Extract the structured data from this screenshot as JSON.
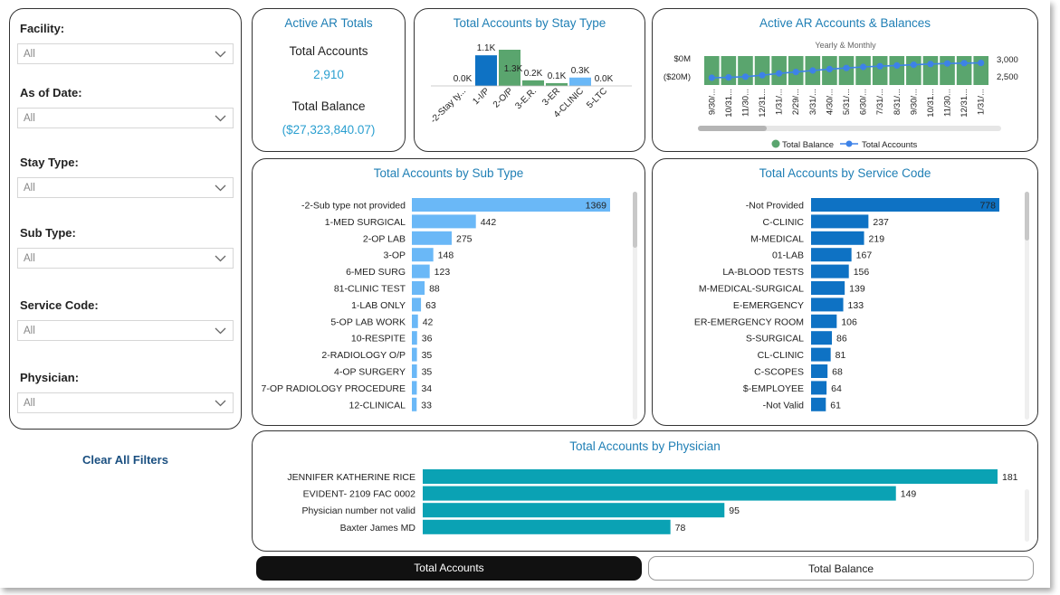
{
  "filters": {
    "items": [
      {
        "label": "Facility:",
        "value": "All"
      },
      {
        "label": "As of Date:",
        "value": "All"
      },
      {
        "label": "Stay Type:",
        "value": "All"
      },
      {
        "label": "Sub Type:",
        "value": "All"
      },
      {
        "label": "Service Code:",
        "value": "All"
      },
      {
        "label": "Physician:",
        "value": "All"
      }
    ],
    "clear_label": "Clear All Filters"
  },
  "kpi": {
    "title": "Active AR Totals",
    "accounts_label": "Total Accounts",
    "accounts_value": "2,910",
    "balance_label": "Total Balance",
    "balance_value": "($27,323,840.07)"
  },
  "toggles": {
    "accounts_label": "Total Accounts",
    "balance_label": "Total Balance"
  },
  "colors": {
    "blue": "#0e72c4",
    "green": "#5aa56e",
    "light_blue": "#6ab8f7",
    "teal": "#0aa2b4",
    "line_blue": "#3d82e8",
    "title_blue": "#1f7fb5"
  },
  "chart_data": [
    {
      "id": "stay",
      "type": "bar",
      "title": "Total Accounts by Stay Type",
      "categories": [
        "-2-Stay ty...",
        "1-I/P",
        "2-O/P",
        "3-E.R.",
        "3-ER",
        "4-CLINIC",
        "5-LTC"
      ],
      "values": [
        0,
        1.1,
        1.3,
        0.2,
        0.1,
        0.3,
        0
      ],
      "labels": [
        "0.0K",
        "1.1K",
        "1.3K",
        "0.2K",
        "0.1K",
        "0.3K",
        "0.0K"
      ],
      "bar_colors": [
        "#0e72c4",
        "#0e72c4",
        "#5aa56e",
        "#5aa56e",
        "#5aa56e",
        "#6ab8f7",
        "#6ab8f7"
      ],
      "unit": "K"
    },
    {
      "id": "trend",
      "type": "bar+line",
      "title": "Active AR Accounts & Balances",
      "subtitle": "Yearly & Monthly",
      "categories": [
        "9/30/...",
        "10/31...",
        "11/30...",
        "12/31...",
        "1/31/...",
        "2/29/...",
        "3/31/...",
        "4/30/...",
        "5/31/...",
        "6/30/...",
        "7/31/...",
        "8/31/...",
        "9/30/...",
        "10/31...",
        "11/30...",
        "12/31...",
        "1/31/..."
      ],
      "left_axis_ticks": [
        "$0M",
        "($20M)"
      ],
      "right_axis_ticks": [
        "3,000",
        "2,500"
      ],
      "right_ylim": [
        2300,
        3100
      ],
      "line_values": [
        2500,
        2510,
        2530,
        2570,
        2620,
        2660,
        2700,
        2740,
        2770,
        2800,
        2820,
        2840,
        2860,
        2880,
        2895,
        2905,
        2910
      ],
      "legend": [
        "Total Balance",
        "Total Accounts"
      ]
    },
    {
      "id": "subtype",
      "type": "bar",
      "title": "Total Accounts by Sub Type",
      "categories": [
        "-2-Sub type not provided",
        "1-MED SURGICAL",
        "2-OP LAB",
        "3-OP",
        "6-MED SURG",
        "81-CLINIC TEST",
        "1-LAB ONLY",
        "5-OP LAB WORK",
        "10-RESPITE",
        "2-RADIOLOGY O/P",
        "4-OP SURGERY",
        "7-OP RADIOLOGY PROCEDURE",
        "12-CLINICAL"
      ],
      "values": [
        1369,
        442,
        275,
        148,
        123,
        88,
        63,
        42,
        36,
        35,
        35,
        34,
        33
      ],
      "color": "#6ab8f7"
    },
    {
      "id": "service",
      "type": "bar",
      "title": "Total Accounts by Service Code",
      "categories": [
        "-Not Provided",
        "C-CLINIC",
        "M-MEDICAL",
        "01-LAB",
        "LA-BLOOD TESTS",
        "M-MEDICAL-SURGICAL",
        "E-EMERGENCY",
        "ER-EMERGENCY ROOM",
        "S-SURGICAL",
        "CL-CLINIC",
        "C-SCOPES",
        "$-EMPLOYEE",
        "-Not Valid"
      ],
      "values": [
        778,
        237,
        219,
        167,
        156,
        139,
        133,
        106,
        86,
        81,
        68,
        64,
        61
      ],
      "color": "#0e72c4"
    },
    {
      "id": "physician",
      "type": "bar",
      "title": "Total Accounts by Physician",
      "categories": [
        "JENNIFER KATHERINE RICE",
        "EVIDENT- 2109 FAC 0002",
        "Physician number not valid",
        "Baxter James MD"
      ],
      "values": [
        181,
        149,
        95,
        78
      ],
      "color": "#0aa2b4"
    }
  ]
}
